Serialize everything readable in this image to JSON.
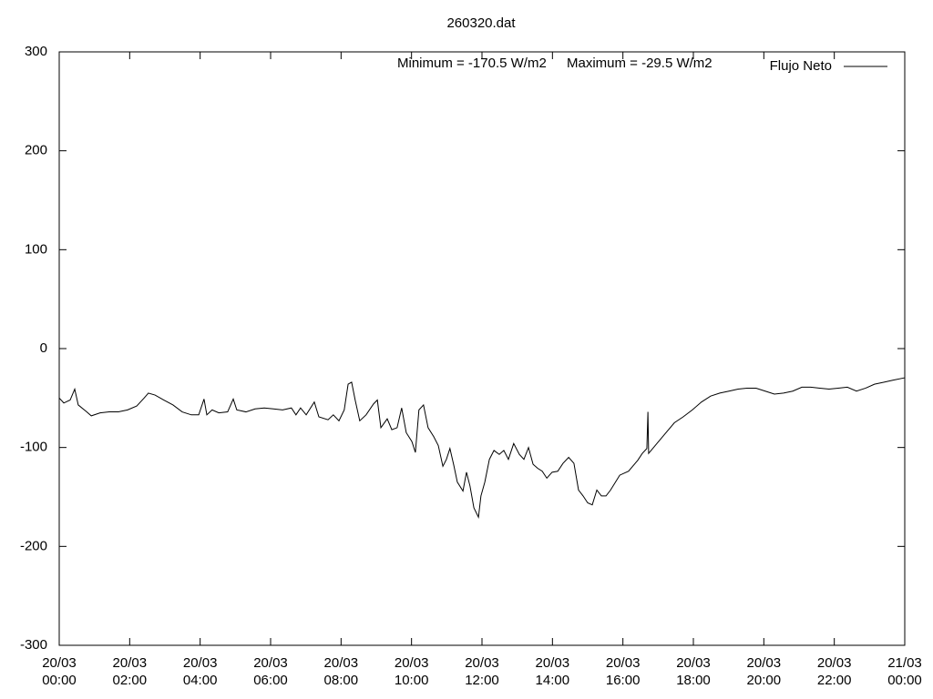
{
  "chart_data": {
    "type": "line",
    "title": "260320.dat",
    "annotations": [
      "Minimum = -170.5 W/m2",
      "Maximum = -29.5 W/m2"
    ],
    "x": [
      0,
      0.13,
      0.31,
      0.44,
      0.54,
      0.78,
      0.91,
      1.16,
      1.42,
      1.68,
      1.94,
      2.2,
      2.41,
      2.53,
      2.72,
      2.97,
      3.23,
      3.49,
      3.75,
      3.96,
      4.11,
      4.19,
      4.34,
      4.53,
      4.78,
      4.94,
      5.04,
      5.3,
      5.56,
      5.82,
      6.08,
      6.34,
      6.59,
      6.72,
      6.85,
      7.01,
      7.24,
      7.37,
      7.63,
      7.78,
      7.94,
      8.09,
      8.2,
      8.3,
      8.4,
      8.53,
      8.71,
      8.92,
      9.03,
      9.13,
      9.31,
      9.44,
      9.59,
      9.72,
      9.85,
      10.01,
      10.11,
      10.21,
      10.34,
      10.47,
      10.63,
      10.76,
      10.89,
      10.99,
      11.09,
      11.2,
      11.3,
      11.46,
      11.56,
      11.66,
      11.77,
      11.9,
      11.97,
      12.08,
      12.21,
      12.34,
      12.49,
      12.62,
      12.75,
      12.9,
      13.06,
      13.19,
      13.32,
      13.45,
      13.58,
      13.71,
      13.84,
      13.99,
      14.15,
      14.3,
      14.46,
      14.61,
      14.74,
      14.87,
      15,
      15.13,
      15.26,
      15.39,
      15.52,
      15.65,
      15.91,
      16.16,
      16.42,
      16.55,
      16.68,
      16.71,
      16.73,
      16.94,
      17.2,
      17.46,
      17.71,
      17.97,
      18.23,
      18.49,
      18.75,
      19.01,
      19.27,
      19.52,
      19.78,
      20.04,
      20.3,
      20.56,
      20.82,
      21.08,
      21.33,
      21.59,
      21.85,
      22.11,
      22.37,
      22.63,
      22.89,
      23.14,
      23.4,
      23.66,
      24
    ],
    "series": [
      {
        "name": "Flujo Neto",
        "color": "#000000",
        "values": [
          -50,
          -55,
          -52,
          -41,
          -57,
          -64,
          -68,
          -65,
          -64,
          -64,
          -62,
          -58,
          -50,
          -45,
          -47,
          -52,
          -57,
          -64,
          -67,
          -67,
          -51,
          -67,
          -62,
          -65,
          -64,
          -51,
          -62,
          -64,
          -61,
          -60,
          -61,
          -62,
          -60,
          -67,
          -60,
          -67,
          -54,
          -69,
          -72,
          -67,
          -73,
          -62,
          -36,
          -34,
          -52,
          -73,
          -67,
          -56,
          -52,
          -80,
          -71,
          -82,
          -80,
          -60,
          -85,
          -94,
          -105,
          -62,
          -57,
          -80,
          -89,
          -98,
          -119,
          -112,
          -101,
          -118,
          -135,
          -144,
          -125,
          -139,
          -161,
          -170.5,
          -149,
          -135,
          -112,
          -103,
          -107,
          -103,
          -112,
          -96,
          -107,
          -112,
          -100,
          -117,
          -121,
          -124,
          -131,
          -125,
          -124,
          -116,
          -110,
          -116,
          -143,
          -149,
          -156,
          -158,
          -143,
          -149,
          -149,
          -143,
          -128,
          -124,
          -113,
          -106,
          -101,
          -64,
          -106,
          -97,
          -86,
          -75,
          -69,
          -62,
          -54,
          -48,
          -45,
          -43,
          -41,
          -40,
          -40,
          -43,
          -46,
          -45,
          -43,
          -39,
          -39,
          -40,
          -41,
          -40,
          -39,
          -43,
          -40,
          -36,
          -34,
          -32,
          -29.5
        ]
      }
    ],
    "xlim": [
      0,
      24
    ],
    "xticks": [
      {
        "value": 0,
        "label": "20/03 00:00"
      },
      {
        "value": 2,
        "label": "20/03 02:00"
      },
      {
        "value": 4,
        "label": "20/03 04:00"
      },
      {
        "value": 6,
        "label": "20/03 06:00"
      },
      {
        "value": 8,
        "label": "20/03 08:00"
      },
      {
        "value": 10,
        "label": "20/03 10:00"
      },
      {
        "value": 12,
        "label": "20/03 12:00"
      },
      {
        "value": 14,
        "label": "20/03 14:00"
      },
      {
        "value": 16,
        "label": "20/03 16:00"
      },
      {
        "value": 18,
        "label": "20/03 18:00"
      },
      {
        "value": 20,
        "label": "20/03 20:00"
      },
      {
        "value": 22,
        "label": "20/03 22:00"
      },
      {
        "value": 24,
        "label": "21/03 00:00"
      }
    ],
    "ylim": [
      -300,
      300
    ],
    "yticks": [
      -300,
      -200,
      -100,
      0,
      100,
      200,
      300
    ],
    "grid": false,
    "legend": "top-right"
  }
}
